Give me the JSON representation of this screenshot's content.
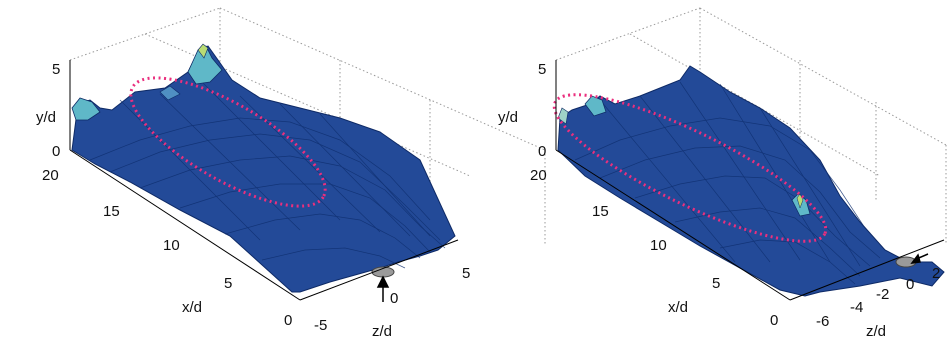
{
  "chart_data": [
    {
      "type": "surface",
      "xlabel": "x/d",
      "ylabel": "y/d",
      "zlabel": "z/d",
      "x_ticks": [
        "0",
        "5",
        "10",
        "15",
        "20"
      ],
      "y_ticks": [
        "0",
        "5"
      ],
      "z_ticks": [
        "-5",
        "0",
        "5"
      ],
      "xlim": [
        0,
        20
      ],
      "ylim": [
        0,
        5
      ],
      "zlim": [
        -5,
        5
      ],
      "colormap": "parula-like (dark blue to cyan/green/yellow)",
      "grid": true,
      "annotation": "dotted magenta ellipse highlighting elevated ridge region",
      "marker": "arrow pointing to jet source at x/d=0, z/d=0"
    },
    {
      "type": "surface",
      "xlabel": "x/d",
      "ylabel": "y/d",
      "zlabel": "z/d",
      "x_ticks": [
        "0",
        "5",
        "10",
        "15",
        "20"
      ],
      "y_ticks": [
        "0",
        "5"
      ],
      "z_ticks": [
        "-6",
        "-4",
        "-2",
        "0",
        "2"
      ],
      "xlim": [
        0,
        20
      ],
      "ylim": [
        0,
        5
      ],
      "zlim": [
        -6,
        2
      ],
      "colormap": "parula-like (dark blue to cyan/green/yellow)",
      "grid": true,
      "annotation": "dotted magenta ellipse highlighting elevated ridge region",
      "marker": "arrow pointing to jet source at x/d=0, z/d=0"
    }
  ],
  "colors": {
    "surface_dark": "#1c3c86",
    "surface_mid": "#2e64b0",
    "surface_light": "#5fb8c8",
    "surface_peak": "#b9dc74",
    "ellipse": "#ea2f7e"
  }
}
